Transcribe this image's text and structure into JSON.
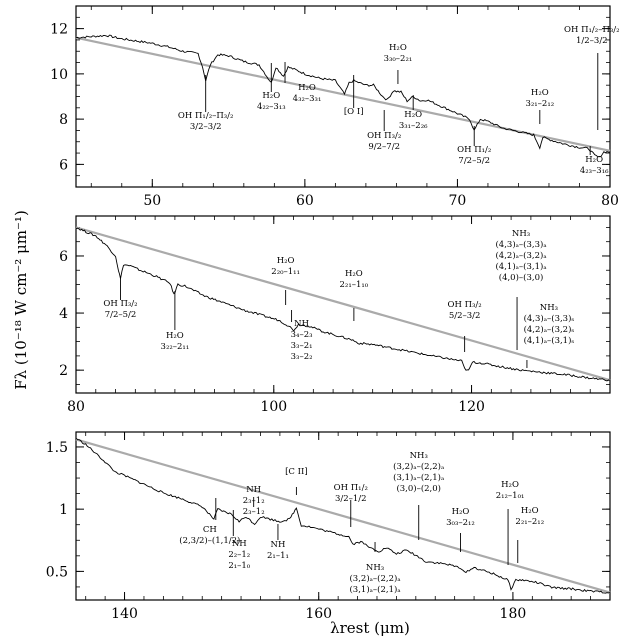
{
  "figure": {
    "ylabel": "Fλ (10⁻¹⁸ W cm⁻² μm⁻¹)",
    "xlabel": "λrest (μm)"
  },
  "chart_data": [
    {
      "type": "line",
      "xlim": [
        45,
        80
      ],
      "ylim": [
        5,
        13
      ],
      "xticks": [
        50,
        60,
        70,
        80
      ],
      "yticks": [
        6,
        8,
        10,
        12
      ],
      "continuum": [
        [
          45,
          11.6
        ],
        [
          80,
          6.6
        ]
      ],
      "x": [
        45,
        46,
        47,
        48,
        49,
        50,
        51,
        52,
        53,
        53.3,
        53.5,
        53.8,
        54.3,
        55,
        56,
        57,
        57.8,
        58.1,
        58.6,
        58.9,
        59.5,
        60,
        61,
        62,
        62.6,
        62.9,
        63.2,
        64,
        64.5,
        65.1,
        65.4,
        65.8,
        66.3,
        66.7,
        67.1,
        67.6,
        68,
        69,
        70,
        70.8,
        71.1,
        71.5,
        72,
        73,
        74,
        75,
        75.4,
        75.6,
        76,
        77,
        78,
        78.6,
        79,
        79.3,
        79.6,
        80
      ],
      "y": [
        11.6,
        11.65,
        11.7,
        11.55,
        11.45,
        11.35,
        11.2,
        11.0,
        10.9,
        10.3,
        9.7,
        10.4,
        10.85,
        10.8,
        10.55,
        10.4,
        9.6,
        10.3,
        9.9,
        10.3,
        10.15,
        10.0,
        9.8,
        9.7,
        9.1,
        9.6,
        9.7,
        9.5,
        9.5,
        9.0,
        8.85,
        9.25,
        9.2,
        8.8,
        9.0,
        8.8,
        8.85,
        8.55,
        8.25,
        8.0,
        7.5,
        8.0,
        7.9,
        7.6,
        7.45,
        7.3,
        6.75,
        7.2,
        7.1,
        6.9,
        6.75,
        6.7,
        6.4,
        6.3,
        6.55,
        6.55
      ],
      "annotations": [
        {
          "x": 53.5,
          "lines": [
            "OH Π₁/₂–Π₃/₂",
            "3/2–3/2"
          ]
        },
        {
          "x": 57.8,
          "lines": [
            "H₂O",
            "4₂₂–3₁₃"
          ]
        },
        {
          "x": 58.7,
          "lines": [
            "H₂O",
            "4₃₂–3₃₁"
          ]
        },
        {
          "x": 63.2,
          "lines": [
            "[O I]"
          ]
        },
        {
          "x": 66.1,
          "lines": [
            "H₂O",
            "3₃₀–2₂₁"
          ]
        },
        {
          "x": 65.2,
          "lines": [
            "OH Π₃/₂",
            "9/2–7/2"
          ]
        },
        {
          "x": 67.1,
          "lines": [
            "H₂O",
            "3₃₁–2₂₆"
          ]
        },
        {
          "x": 71.1,
          "lines": [
            "OH Π₁/₂",
            "7/2–5/2"
          ]
        },
        {
          "x": 75.4,
          "lines": [
            "H₂O",
            "3₂₁–2₁₂"
          ]
        },
        {
          "x": 79.2,
          "lines": [
            "OH Π₁/₂–Π₃/₂",
            "1/2–3/2"
          ]
        },
        {
          "x": 78.7,
          "lines": [
            "H₂O",
            "4₂₃–3₁₆"
          ]
        }
      ]
    },
    {
      "type": "line",
      "xlim": [
        80,
        134
      ],
      "ylim": [
        1.2,
        7.4
      ],
      "xticks": [
        80,
        100,
        120
      ],
      "yticks": [
        2,
        4,
        6
      ],
      "continuum": [
        [
          80,
          7.0
        ],
        [
          134,
          1.65
        ]
      ],
      "x": [
        80,
        81,
        82,
        83,
        84,
        84.3,
        84.5,
        84.8,
        85.5,
        86.5,
        88,
        89.5,
        89.9,
        90.3,
        91,
        93,
        95,
        97,
        99,
        100.5,
        101.5,
        102,
        102.5,
        103.5,
        105,
        107,
        108,
        108.5,
        110,
        113,
        116,
        119,
        119.3,
        119.7,
        120.1,
        121,
        123,
        125,
        127,
        130,
        132,
        134
      ],
      "y": [
        7.0,
        6.85,
        6.7,
        6.4,
        6.0,
        5.5,
        5.2,
        5.7,
        5.65,
        5.5,
        5.3,
        5.05,
        4.65,
        5.0,
        4.95,
        4.6,
        4.35,
        4.1,
        3.9,
        3.75,
        3.55,
        3.4,
        3.6,
        3.55,
        3.35,
        3.15,
        3.05,
        2.95,
        2.9,
        2.7,
        2.5,
        2.32,
        2.05,
        1.98,
        2.28,
        2.25,
        2.12,
        2.0,
        1.93,
        1.82,
        1.72,
        1.65
      ],
      "annotations": [
        {
          "x": 84.5,
          "lines": [
            "OH Π₃/₂",
            "7/2–5/2"
          ]
        },
        {
          "x": 90.0,
          "lines": [
            "H₂O",
            "3₂₂–2₁₁"
          ]
        },
        {
          "x": 101.2,
          "lines": [
            "H₂O",
            "2₂₀–1₁₁"
          ]
        },
        {
          "x": 101.8,
          "lines": [
            "NH",
            "3₄–2₃",
            "3₃–2₁",
            "3₃–2₂"
          ]
        },
        {
          "x": 108.1,
          "lines": [
            "H₂O",
            "2₂₁–1₁₀"
          ]
        },
        {
          "x": 119.3,
          "lines": [
            "OH Π₃/₂",
            "5/2–3/2"
          ]
        },
        {
          "x": 124.6,
          "lines": [
            "NH₃",
            "(4,3)ₐ–(3,3)ₐ",
            "(4,2)ₐ–(3,2)ₐ",
            "(4,1)ₐ–(3,1)ₐ",
            "(4,0)–(3,0)"
          ]
        },
        {
          "x": 125.6,
          "lines": [
            "NH₃",
            "(4,3)ₐ–(3,3)ₛ",
            "(4,2)ₐ–(3,2)ₛ",
            "(4,1)ₐ–(3,1)ₛ"
          ]
        }
      ]
    },
    {
      "type": "line",
      "xlim": [
        135,
        190
      ],
      "ylim": [
        0.27,
        1.62
      ],
      "xticks": [
        140,
        160,
        180
      ],
      "yticks": [
        0.5,
        1,
        1.5
      ],
      "continuum": [
        [
          135,
          1.56
        ],
        [
          190,
          0.33
        ]
      ],
      "x": [
        135,
        136,
        137,
        138,
        139,
        140,
        142,
        144,
        146,
        148,
        149.2,
        149.6,
        150.2,
        151,
        151.8,
        152.5,
        153.4,
        154,
        155,
        156,
        157,
        157.7,
        158.2,
        159,
        160,
        161,
        162,
        163.1,
        163.5,
        164.5,
        165,
        166.2,
        167,
        168,
        169,
        170,
        171,
        173,
        174.6,
        175,
        176,
        178,
        179.5,
        179.8,
        180.3,
        181,
        182.5,
        184,
        186,
        188,
        190
      ],
      "y": [
        1.57,
        1.52,
        1.45,
        1.38,
        1.3,
        1.27,
        1.2,
        1.13,
        1.08,
        1.02,
        0.92,
        1.0,
        0.98,
        0.96,
        0.9,
        0.94,
        0.88,
        0.94,
        0.92,
        0.9,
        0.92,
        1.01,
        0.87,
        0.86,
        0.84,
        0.82,
        0.8,
        0.78,
        0.72,
        0.74,
        0.7,
        0.66,
        0.69,
        0.64,
        0.67,
        0.63,
        0.58,
        0.56,
        0.53,
        0.49,
        0.53,
        0.48,
        0.43,
        0.36,
        0.43,
        0.43,
        0.41,
        0.37,
        0.36,
        0.34,
        0.33
      ],
      "annotations": [
        {
          "x": 149.4,
          "lines": [
            "CH",
            "(2,3/2)–(1,1/2)"
          ]
        },
        {
          "x": 151.2,
          "lines": [
            "NH",
            "2₂–1₂",
            "2₁–1₀"
          ]
        },
        {
          "x": 153.3,
          "lines": [
            "NH",
            "2₃–1₂",
            "2₃–1₂"
          ]
        },
        {
          "x": 157.7,
          "lines": [
            "[C II]"
          ]
        },
        {
          "x": 155.8,
          "lines": [
            "NH",
            "2₁–1₁"
          ]
        },
        {
          "x": 163.3,
          "lines": [
            "OH Π₁/₂",
            "3/2–1/2"
          ]
        },
        {
          "x": 165.8,
          "lines": [
            "NH₃",
            "(3,2)ₐ–(2,2)ₐ",
            "(3,1)ₐ–(2,1)ₐ"
          ]
        },
        {
          "x": 170.3,
          "lines": [
            "NH₃",
            "(3,2)ₐ–(2,2)ₐ",
            "(3,1)ₐ–(2,1)ₐ",
            "(3,0)–(2,0)"
          ]
        },
        {
          "x": 174.6,
          "lines": [
            "H₂O",
            "3₀₃–2₁₂"
          ]
        },
        {
          "x": 179.5,
          "lines": [
            "H₂O",
            "2₁₂–1₀₁"
          ]
        },
        {
          "x": 180.5,
          "lines": [
            "H₂O",
            "2₂₁–2₁₂"
          ]
        }
      ]
    }
  ]
}
